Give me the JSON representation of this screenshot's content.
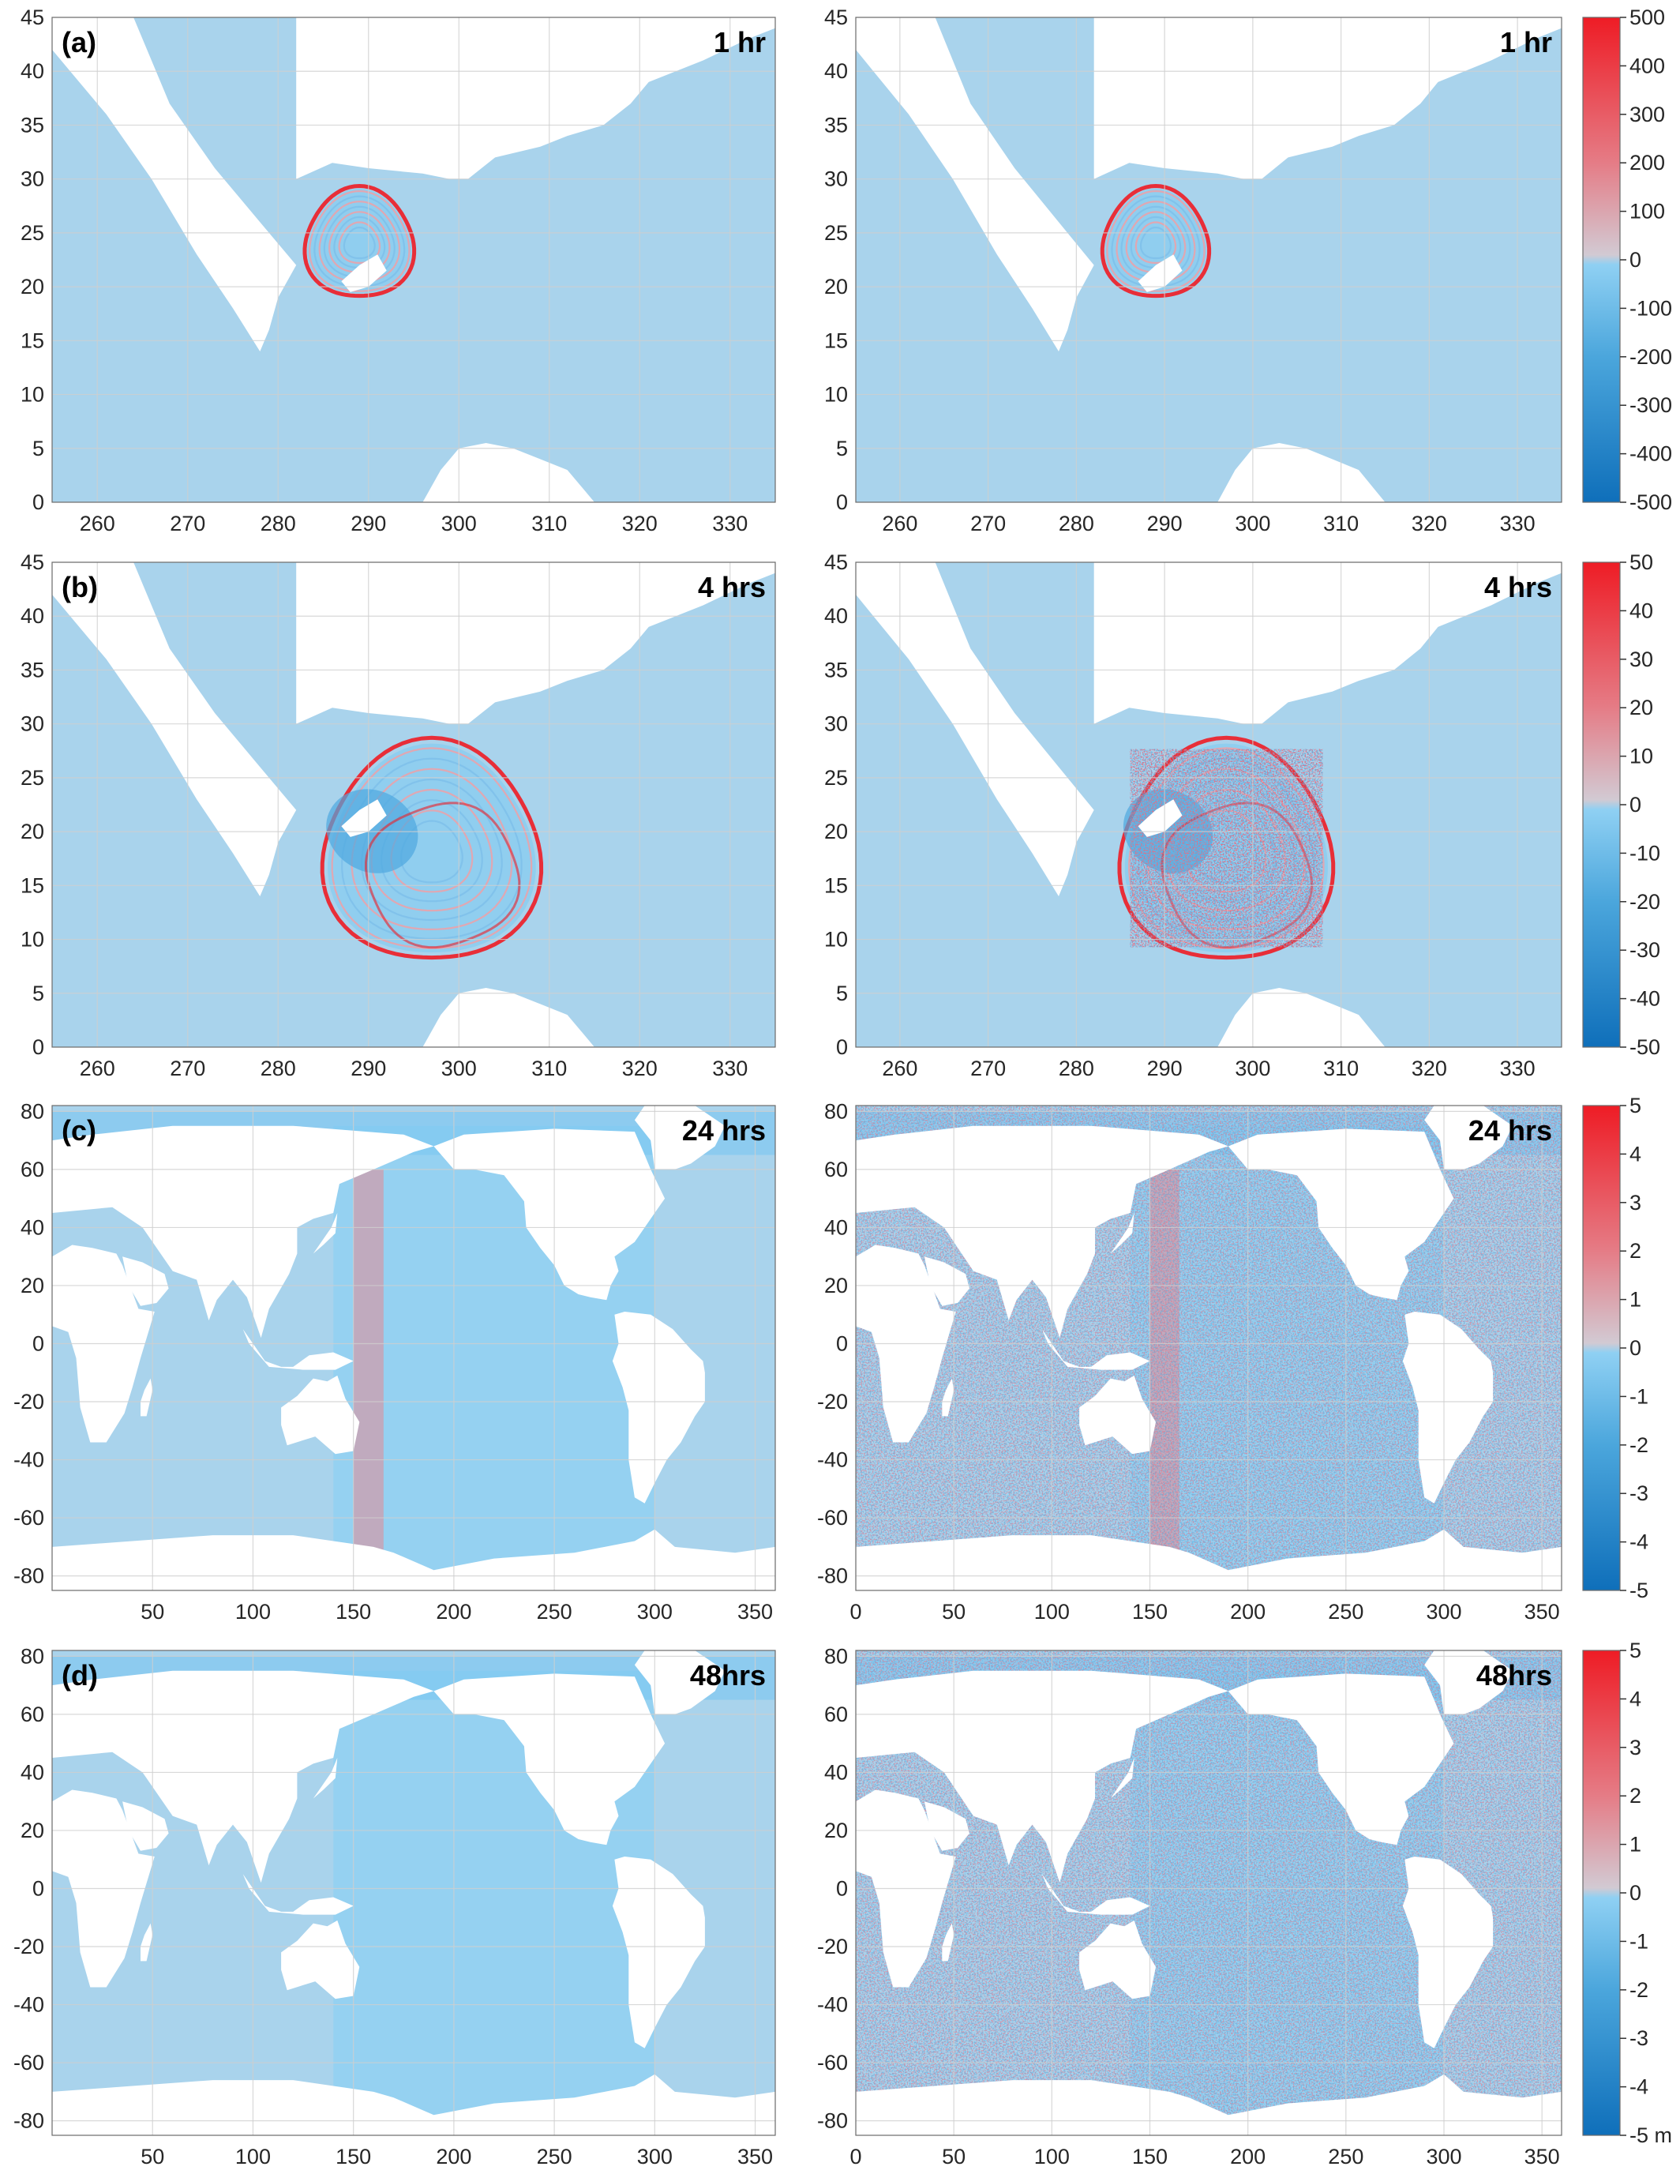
{
  "chart_data": [
    {
      "type": "heatmap",
      "row": 0,
      "col": 0,
      "panel_label": "(a)",
      "time_label": "1 hr",
      "xlim": [
        255,
        335
      ],
      "ylim": [
        0,
        45
      ],
      "xticks": [
        260,
        270,
        280,
        290,
        300,
        310,
        320,
        330
      ],
      "yticks": [
        0,
        5,
        10,
        15,
        20,
        25,
        30,
        35,
        40,
        45
      ],
      "grid": true,
      "map_type": "regional",
      "ring_center": [
        289,
        24
      ],
      "ring_radius": 6,
      "field": "rings",
      "noise": false,
      "colorbar_range": [
        -500,
        500
      ]
    },
    {
      "type": "heatmap",
      "row": 0,
      "col": 1,
      "panel_label": "",
      "time_label": "1 hr",
      "xlim": [
        255,
        335
      ],
      "ylim": [
        0,
        45
      ],
      "xticks": [
        260,
        270,
        280,
        290,
        300,
        310,
        320,
        330
      ],
      "yticks": [
        0,
        5,
        10,
        15,
        20,
        25,
        30,
        35,
        40,
        45
      ],
      "grid": true,
      "map_type": "regional",
      "ring_center": [
        289,
        24
      ],
      "ring_radius": 6,
      "field": "rings",
      "noise": false,
      "colorbar_range": [
        -500,
        500
      ]
    },
    {
      "type": "heatmap",
      "row": 1,
      "col": 0,
      "panel_label": "(b)",
      "time_label": "4 hrs",
      "xlim": [
        255,
        335
      ],
      "ylim": [
        0,
        45
      ],
      "xticks": [
        260,
        270,
        280,
        290,
        300,
        310,
        320,
        330
      ],
      "yticks": [
        0,
        5,
        10,
        15,
        20,
        25,
        30,
        35,
        40,
        45
      ],
      "grid": true,
      "map_type": "regional",
      "ring_center": [
        297,
        18
      ],
      "ring_radius": 12,
      "field": "rings",
      "noise": false,
      "colorbar_range": [
        -50,
        50
      ]
    },
    {
      "type": "heatmap",
      "row": 1,
      "col": 1,
      "panel_label": "",
      "time_label": "4 hrs",
      "xlim": [
        255,
        335
      ],
      "ylim": [
        0,
        45
      ],
      "xticks": [
        260,
        270,
        280,
        290,
        300,
        310,
        320,
        330
      ],
      "yticks": [
        0,
        5,
        10,
        15,
        20,
        25,
        30,
        35,
        40,
        45
      ],
      "grid": true,
      "map_type": "regional",
      "ring_center": [
        297,
        18
      ],
      "ring_radius": 12,
      "field": "rings",
      "noise": true,
      "colorbar_range": [
        -50,
        50
      ]
    },
    {
      "type": "heatmap",
      "row": 2,
      "col": 0,
      "panel_label": "(c)",
      "time_label": "24 hrs",
      "xlim": [
        0,
        360
      ],
      "ylim": [
        -85,
        82
      ],
      "xticks": [
        50,
        100,
        150,
        200,
        250,
        300,
        350
      ],
      "yticks": [
        -80,
        -60,
        -40,
        -20,
        0,
        20,
        40,
        60,
        80
      ],
      "grid": true,
      "map_type": "global",
      "field": "global",
      "noise": false,
      "colorbar_range": [
        -5,
        5
      ]
    },
    {
      "type": "heatmap",
      "row": 2,
      "col": 1,
      "panel_label": "",
      "time_label": "24 hrs",
      "xlim": [
        0,
        360
      ],
      "ylim": [
        -85,
        82
      ],
      "xticks": [
        0,
        50,
        100,
        150,
        200,
        250,
        300,
        350
      ],
      "yticks": [
        -80,
        -60,
        -40,
        -20,
        0,
        20,
        40,
        60,
        80
      ],
      "grid": true,
      "map_type": "global",
      "field": "global",
      "noise": true,
      "colorbar_range": [
        -5,
        5
      ]
    },
    {
      "type": "heatmap",
      "row": 3,
      "col": 0,
      "panel_label": "(d)",
      "time_label": "48hrs",
      "xlim": [
        0,
        360
      ],
      "ylim": [
        -85,
        82
      ],
      "xticks": [
        50,
        100,
        150,
        200,
        250,
        300,
        350
      ],
      "yticks": [
        -80,
        -60,
        -40,
        -20,
        0,
        20,
        40,
        60,
        80
      ],
      "grid": true,
      "map_type": "global",
      "field": "global",
      "noise": false,
      "colorbar_range": [
        -5,
        5
      ]
    },
    {
      "type": "heatmap",
      "row": 3,
      "col": 1,
      "panel_label": "",
      "time_label": "48hrs",
      "xlim": [
        0,
        360
      ],
      "ylim": [
        -85,
        82
      ],
      "xticks": [
        0,
        50,
        100,
        150,
        200,
        250,
        300,
        350
      ],
      "yticks": [
        -80,
        -60,
        -40,
        -20,
        0,
        20,
        40,
        60,
        80
      ],
      "grid": true,
      "map_type": "global",
      "field": "global",
      "noise": true,
      "colorbar_range": [
        -5,
        5
      ]
    }
  ],
  "colorbars": [
    {
      "row": 0,
      "range": [
        -500,
        500
      ],
      "ticks": [
        "500",
        "400",
        "300",
        "200",
        "100",
        "0",
        "-100",
        "-200",
        "-300",
        "-400",
        "-500"
      ],
      "unit": ""
    },
    {
      "row": 1,
      "range": [
        -50,
        50
      ],
      "ticks": [
        "50",
        "40",
        "30",
        "20",
        "10",
        "0",
        "-10",
        "-20",
        "-30",
        "-40",
        "-50"
      ],
      "unit": ""
    },
    {
      "row": 2,
      "range": [
        -5,
        5
      ],
      "ticks": [
        "5",
        "4",
        "3",
        "2",
        "1",
        "0",
        "-1",
        "-2",
        "-3",
        "-4",
        "-5"
      ],
      "unit": ""
    },
    {
      "row": 3,
      "range": [
        -5,
        5
      ],
      "ticks": [
        "5",
        "4",
        "3",
        "2",
        "1",
        "0",
        "-1",
        "-2",
        "-3",
        "-4",
        "-5 m"
      ],
      "unit": "m"
    }
  ],
  "colors": {
    "ocean": "#a9d3ec",
    "land": "#ffffff",
    "positive": "#ee1c25",
    "negative": "#0f6fba",
    "neutral_pos": "#d2cad3",
    "neutral_neg": "#8fd0f3",
    "grid": "#cfcfcf"
  }
}
